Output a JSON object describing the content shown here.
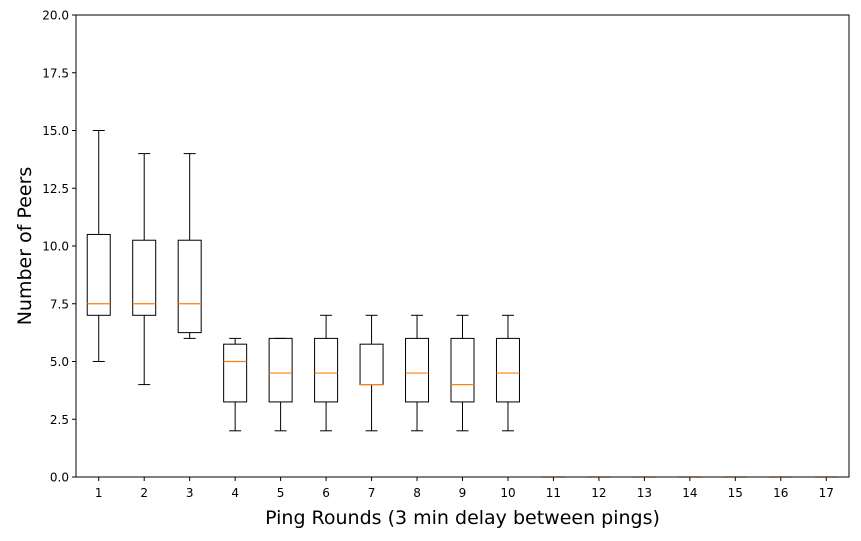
{
  "chart_data": {
    "type": "box",
    "xlabel": "Ping Rounds (3 min delay between pings)",
    "ylabel": "Number of Peers",
    "ylim": [
      0,
      20
    ],
    "xlim": [
      0.5,
      17.5
    ],
    "yticks": [
      0.0,
      2.5,
      5.0,
      7.5,
      10.0,
      12.5,
      15.0,
      17.5,
      20.0
    ],
    "ytick_labels": [
      "0.0",
      "2.5",
      "5.0",
      "7.5",
      "10.0",
      "12.5",
      "15.0",
      "17.5",
      "20.0"
    ],
    "categories": [
      "1",
      "2",
      "3",
      "4",
      "5",
      "6",
      "7",
      "8",
      "9",
      "10",
      "11",
      "12",
      "13",
      "14",
      "15",
      "16",
      "17"
    ],
    "boxes": [
      {
        "x": "1",
        "whisker_low": 5,
        "q1": 7,
        "median": 7.5,
        "q3": 10.5,
        "whisker_high": 15
      },
      {
        "x": "2",
        "whisker_low": 4,
        "q1": 7,
        "median": 7.5,
        "q3": 10.25,
        "whisker_high": 14
      },
      {
        "x": "3",
        "whisker_low": 6,
        "q1": 6.25,
        "median": 7.5,
        "q3": 10.25,
        "whisker_high": 14
      },
      {
        "x": "4",
        "whisker_low": 2,
        "q1": 3.25,
        "median": 5,
        "q3": 5.75,
        "whisker_high": 6
      },
      {
        "x": "5",
        "whisker_low": 2,
        "q1": 3.25,
        "median": 4.5,
        "q3": 6,
        "whisker_high": 6
      },
      {
        "x": "6",
        "whisker_low": 2,
        "q1": 3.25,
        "median": 4.5,
        "q3": 6,
        "whisker_high": 7
      },
      {
        "x": "7",
        "whisker_low": 2,
        "q1": 4,
        "median": 4,
        "q3": 5.75,
        "whisker_high": 7
      },
      {
        "x": "8",
        "whisker_low": 2,
        "q1": 3.25,
        "median": 4.5,
        "q3": 6,
        "whisker_high": 7
      },
      {
        "x": "9",
        "whisker_low": 2,
        "q1": 3.25,
        "median": 4,
        "q3": 6,
        "whisker_high": 7
      },
      {
        "x": "10",
        "whisker_low": 2,
        "q1": 3.25,
        "median": 4.5,
        "q3": 6,
        "whisker_high": 7
      },
      {
        "x": "11",
        "whisker_low": 0,
        "q1": 0,
        "median": 0,
        "q3": 0,
        "whisker_high": 0
      },
      {
        "x": "12",
        "whisker_low": 0,
        "q1": 0,
        "median": 0,
        "q3": 0,
        "whisker_high": 0
      },
      {
        "x": "13",
        "whisker_low": 0,
        "q1": 0,
        "median": 0,
        "q3": 0,
        "whisker_high": 0
      },
      {
        "x": "14",
        "whisker_low": 0,
        "q1": 0,
        "median": 0,
        "q3": 0,
        "whisker_high": 0
      },
      {
        "x": "15",
        "whisker_low": 0,
        "q1": 0,
        "median": 0,
        "q3": 0,
        "whisker_high": 0
      },
      {
        "x": "16",
        "whisker_low": 0,
        "q1": 0,
        "median": 0,
        "q3": 0,
        "whisker_high": 0
      },
      {
        "x": "17",
        "whisker_low": 0,
        "q1": 0,
        "median": 0,
        "q3": 0,
        "whisker_high": 0
      }
    ],
    "grid": false,
    "colors": {
      "box": "#000000",
      "median": "#ff7f0e",
      "axes": "#000000",
      "background": "#ffffff"
    }
  }
}
